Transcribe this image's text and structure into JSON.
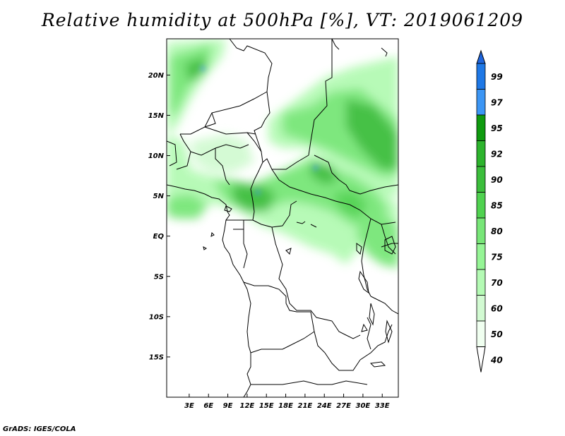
{
  "title": "Relative humidity at 500hPa [%], VT: 2019061209",
  "credit": "GrADS: IGES/COLA",
  "map": {
    "lon_range": [
      -0.5,
      35.5
    ],
    "lat_range": [
      -20,
      24.5
    ],
    "lat_ticks": [
      "20N",
      "15N",
      "10N",
      "5N",
      "EQ",
      "5S",
      "10S",
      "15S"
    ],
    "lat_tick_values": [
      20,
      15,
      10,
      5,
      0,
      -5,
      -10,
      -15
    ],
    "lon_ticks": [
      "3E",
      "6E",
      "9E",
      "12E",
      "15E",
      "18E",
      "21E",
      "24E",
      "27E",
      "30E",
      "33E"
    ],
    "lon_tick_values": [
      3,
      6,
      9,
      12,
      15,
      18,
      21,
      24,
      27,
      30,
      33
    ]
  },
  "colorbar": {
    "levels": [
      "99",
      "97",
      "95",
      "92",
      "90",
      "85",
      "80",
      "75",
      "70",
      "60",
      "50",
      "40"
    ],
    "colors": [
      "#1e64dc",
      "#1e78e6",
      "#3c96f5",
      "#0f9a0f",
      "#2db42d",
      "#3cbe3c",
      "#50d250",
      "#78e678",
      "#96f596",
      "#b4fab4",
      "#d2fad2",
      "#f0fff0"
    ]
  }
}
